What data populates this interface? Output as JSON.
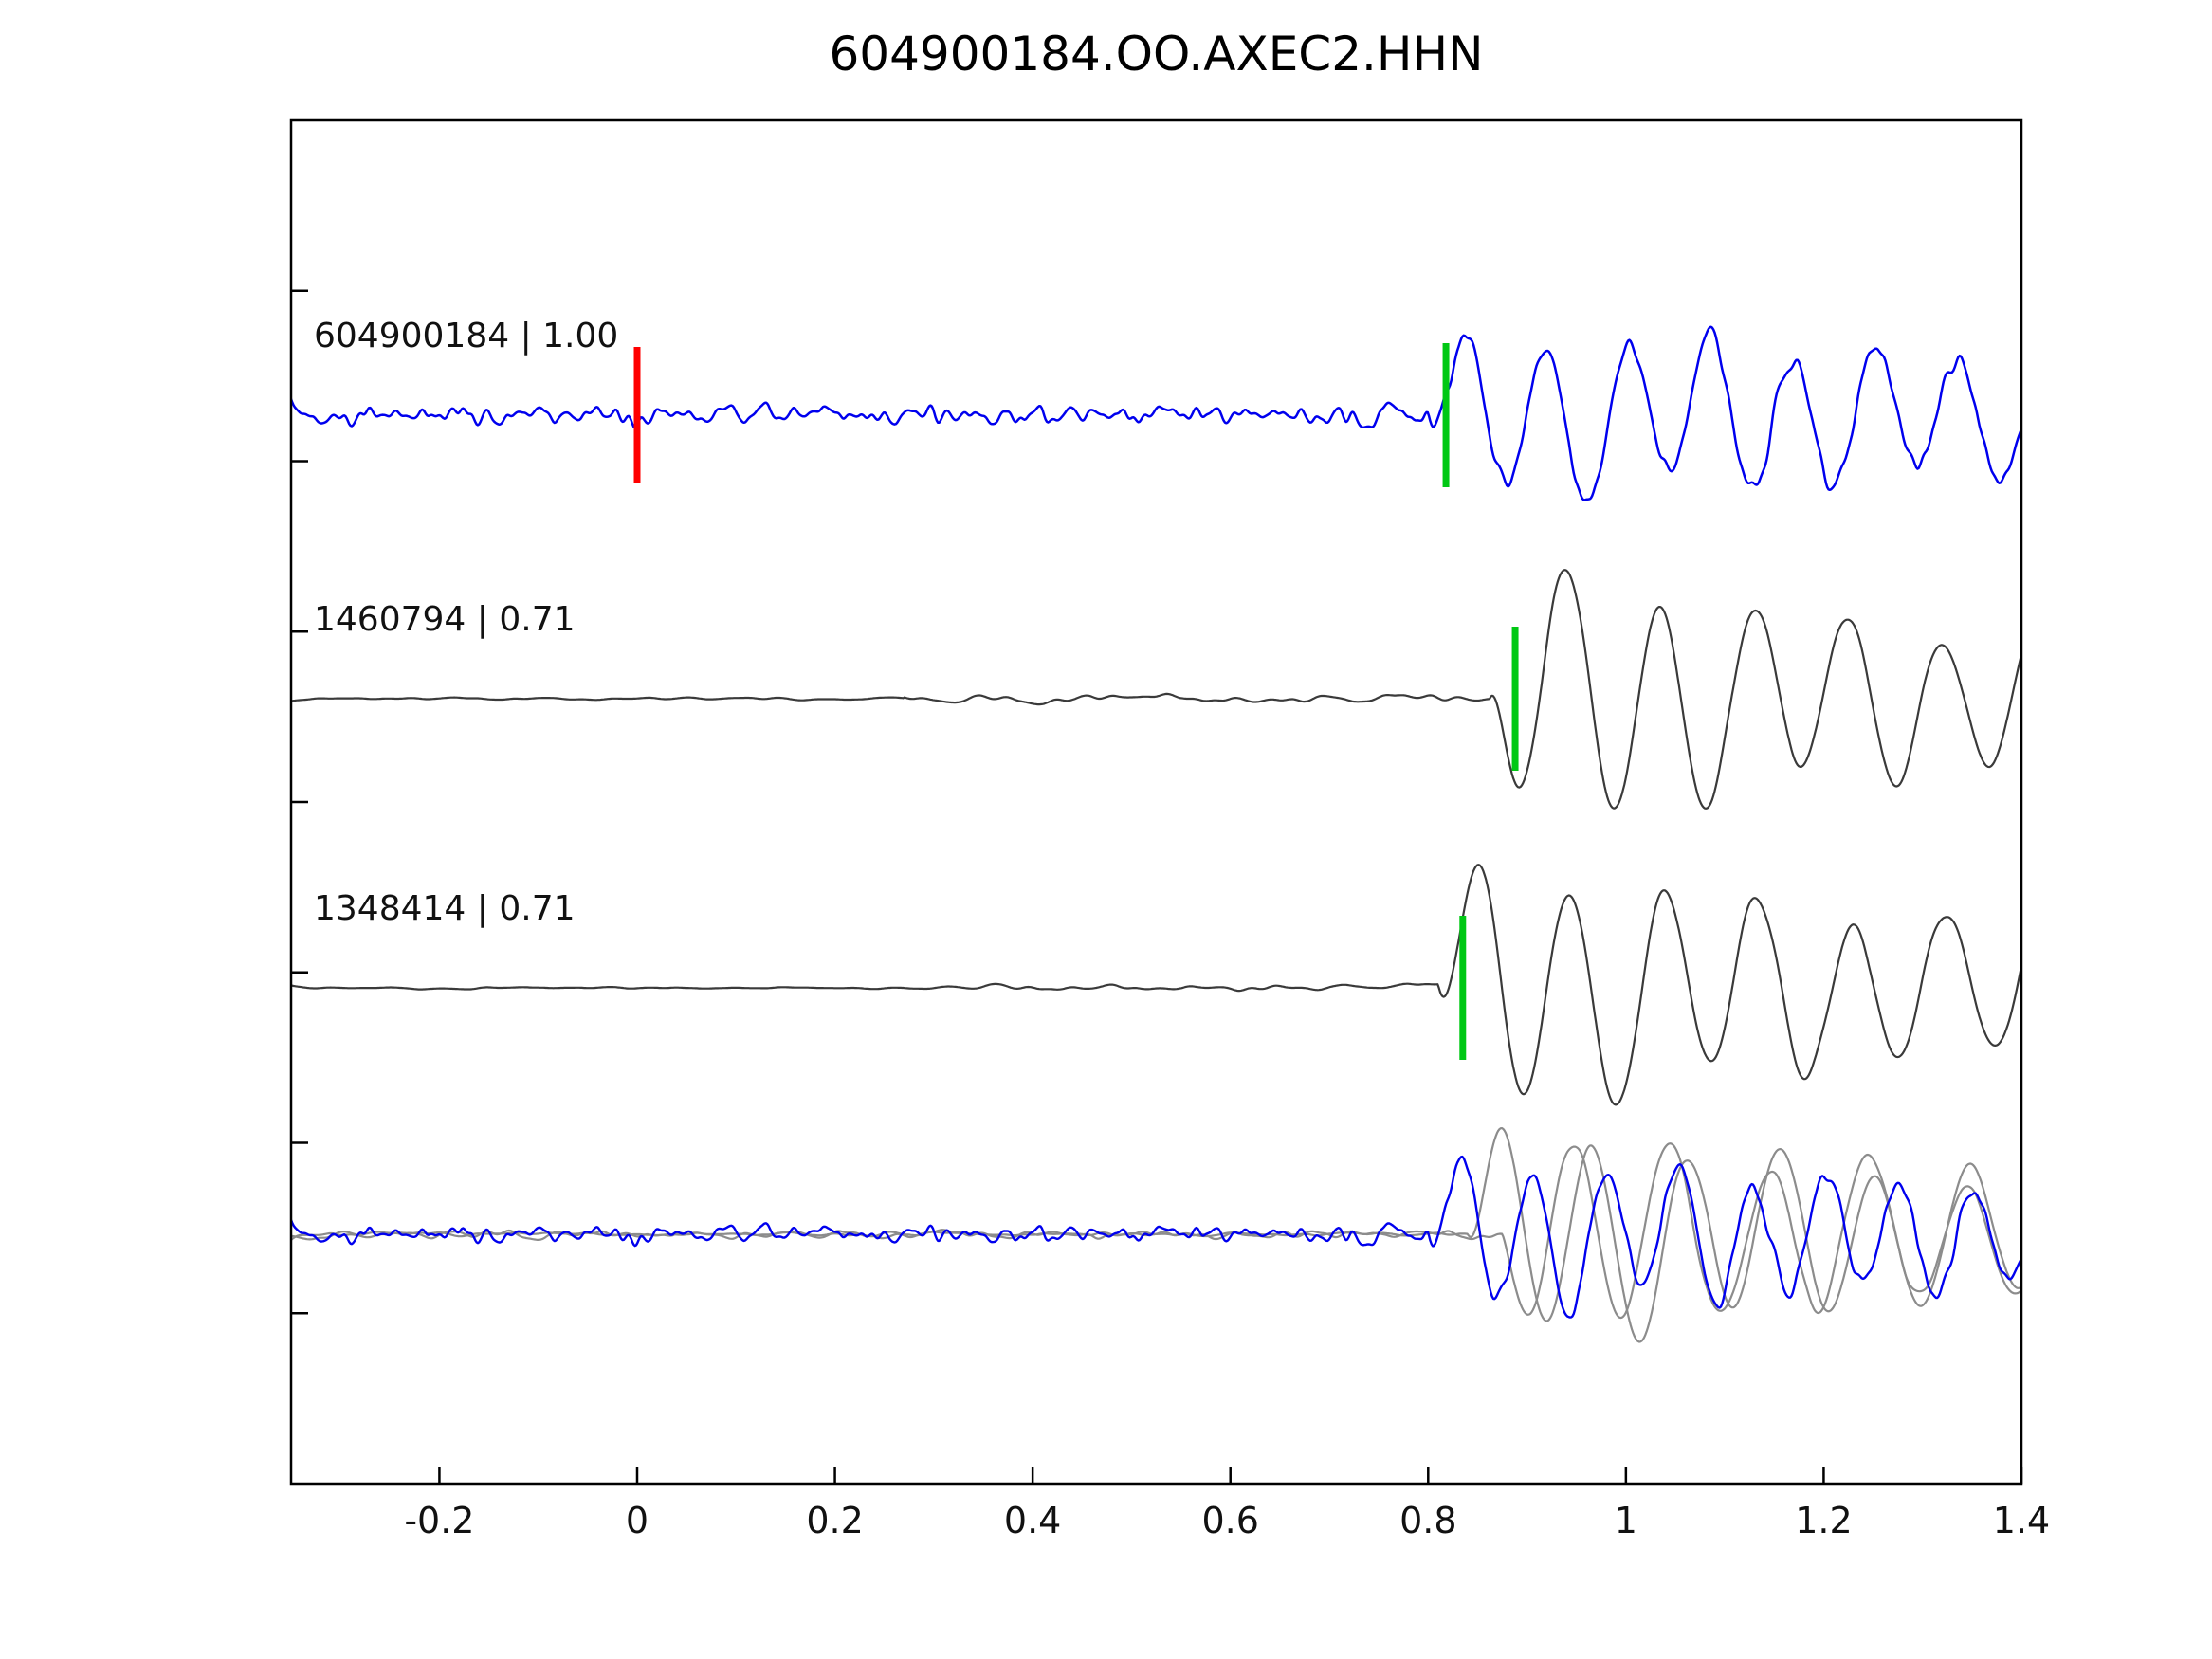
{
  "chart_data": {
    "type": "line",
    "title": "604900184.OO.AXEC2.HHN",
    "xlabel": "",
    "ylabel": "",
    "xlim": [
      -0.35,
      1.4
    ],
    "grid": false,
    "legend": false,
    "x_ticks": [
      {
        "value": -0.2,
        "label": "-0.2"
      },
      {
        "value": 0,
        "label": "0"
      },
      {
        "value": 0.2,
        "label": "0.2"
      },
      {
        "value": 0.4,
        "label": "0.4"
      },
      {
        "value": 0.6,
        "label": "0.6"
      },
      {
        "value": 0.8,
        "label": "0.8"
      },
      {
        "value": 1,
        "label": "1"
      },
      {
        "value": 1.2,
        "label": "1.2"
      },
      {
        "value": 1.4,
        "label": "1.4"
      }
    ],
    "colors": {
      "template_trace": "#0000ee",
      "detection_trace": "#3a3a3a",
      "overlay_gray_trace": "#8c8c8c",
      "template_pick": "#ff0000",
      "detection_pick": "#00c814",
      "axis": "#000000"
    },
    "traces": [
      {
        "id": "604900184",
        "kind": "template",
        "event_id": "604900184",
        "correlation": "1.00",
        "label": "604900184 | 1.00",
        "color": "#0000ee",
        "stroke_width": 2.5,
        "baseline": 438,
        "picks": [
          {
            "time": 0.0,
            "color": "#ff0000",
            "half_height": 72
          },
          {
            "time": 0.818,
            "color": "#00c814",
            "half_height": 76
          }
        ],
        "noise": {
          "segments": [
            [
              -0.35,
              17
            ]
          ],
          "smooth": 8
        },
        "signal": {
          "t0": 0.8,
          "amp": 85,
          "freq": 12,
          "amp2": 18,
          "freq2": 4.5,
          "rise": 0.025,
          "decay": 0.55,
          "mod": 0.4
        },
        "seed": 41
      },
      {
        "id": "1460794",
        "kind": "detection",
        "event_id": "1460794",
        "correlation": "0.71",
        "label": "1460794 | 0.71",
        "color": "#3a3a3a",
        "stroke_width": 2.2,
        "baseline": 737,
        "picks": [
          {
            "time": 0.888,
            "color": "#00c814",
            "half_height": 76
          }
        ],
        "noise": {
          "segments": [
            [
              -0.35,
              2.5
            ],
            [
              0.27,
              8
            ],
            [
              0.55,
              11
            ]
          ],
          "smooth": 48
        },
        "signal": {
          "t0": 0.862,
          "amp": 135,
          "freq": 10.5,
          "amp2": 25,
          "freq2": 4,
          "rise": 0.02,
          "decay": 1.35,
          "mod": 0.3
        },
        "seed": 99
      },
      {
        "id": "1348414",
        "kind": "detection",
        "event_id": "1348414",
        "correlation": "0.71",
        "label": "1348414 | 0.71",
        "color": "#3a3a3a",
        "stroke_width": 2.2,
        "baseline": 1042,
        "picks": [
          {
            "time": 0.835,
            "color": "#00c814",
            "half_height": 76
          }
        ],
        "noise": {
          "segments": [
            [
              -0.35,
              2.5
            ],
            [
              0.27,
              8
            ],
            [
              0.55,
              11
            ]
          ],
          "smooth": 48
        },
        "signal": {
          "t0": 0.81,
          "amp": 135,
          "freq": 10.5,
          "amp2": 24,
          "freq2": 4.2,
          "rise": 0.02,
          "decay": 1.3,
          "mod": 0.3
        },
        "seed": 123
      },
      {
        "id": "overlay-gray-1",
        "kind": "overlay-detection",
        "event_id": "",
        "correlation": "",
        "label": "",
        "color": "#8c8c8c",
        "stroke_width": 2.2,
        "baseline": 1302,
        "picks": [],
        "noise": {
          "segments": [
            [
              -0.35,
              6
            ]
          ],
          "smooth": 30
        },
        "signal": {
          "t0": 0.84,
          "amp": 120,
          "freq": 10.5,
          "amp2": 24,
          "freq2": 4,
          "rise": 0.02,
          "decay": 1.25,
          "mod": 0.3
        },
        "seed": 7
      },
      {
        "id": "overlay-gray-2",
        "kind": "overlay-detection",
        "event_id": "",
        "correlation": "",
        "label": "",
        "color": "#8c8c8c",
        "stroke_width": 2.2,
        "baseline": 1302,
        "picks": [],
        "noise": {
          "segments": [
            [
              -0.35,
              6
            ]
          ],
          "smooth": 30
        },
        "signal": {
          "t0": 0.875,
          "amp": 112,
          "freq": 10,
          "amp2": 22,
          "freq2": 4.3,
          "rise": 0.02,
          "decay": 1.2,
          "mod": 0.3
        },
        "seed": 55
      },
      {
        "id": "overlay-template",
        "kind": "overlay-template",
        "event_id": "",
        "correlation": "",
        "label": "",
        "color": "#0000ee",
        "stroke_width": 2.4,
        "baseline": 1302,
        "picks": [],
        "noise": {
          "segments": [
            [
              -0.35,
              15
            ]
          ],
          "smooth": 8
        },
        "signal": {
          "t0": 0.8,
          "amp": 80,
          "freq": 13.5,
          "amp2": 16,
          "freq2": 5,
          "rise": 0.02,
          "decay": 0.75,
          "mod": 0.4
        },
        "seed": 41
      }
    ]
  }
}
